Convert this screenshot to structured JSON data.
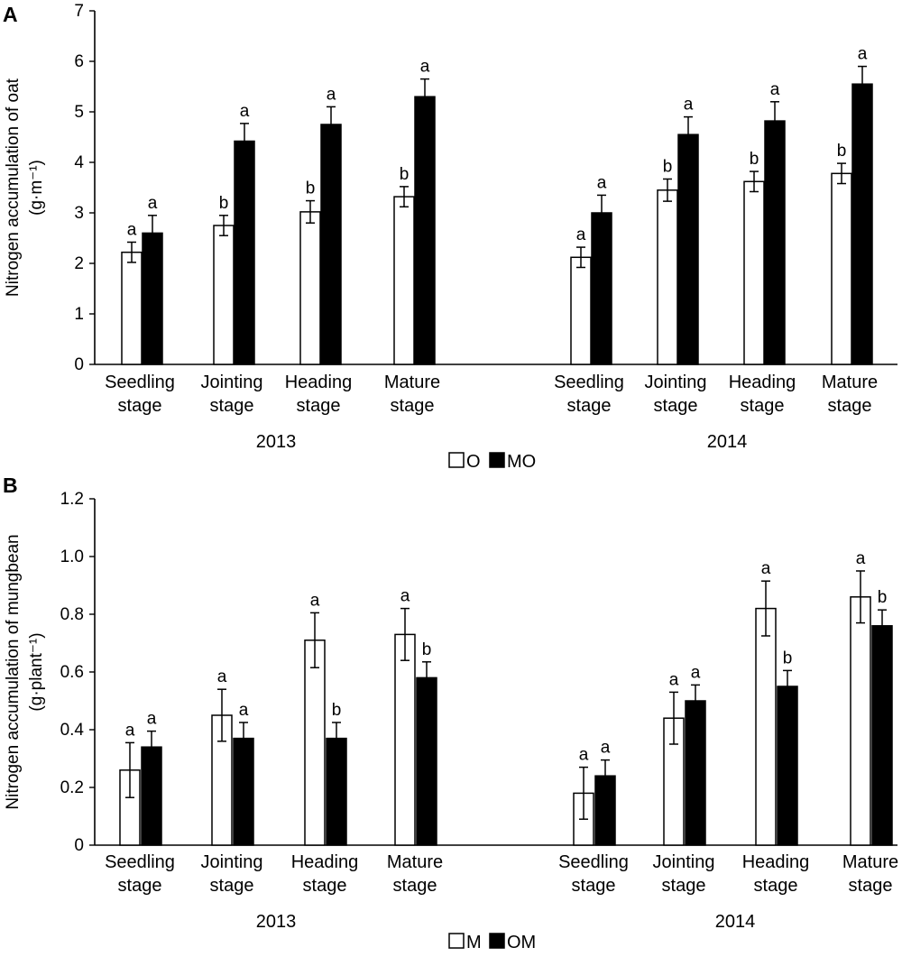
{
  "chart_data": [
    {
      "type": "bar",
      "panel_letter": "A",
      "ylabel_line1": "Nitrogen accumulation of oat",
      "ylabel_line2": "(g·m⁻¹)",
      "ylim": [
        0,
        7
      ],
      "yticks": [
        "0",
        "1",
        "2",
        "3",
        "4",
        "5",
        "6",
        "7"
      ],
      "groups": [
        {
          "year": "2013",
          "categories": [
            [
              "Seedling",
              "stage"
            ],
            [
              "Jointing",
              "stage"
            ],
            [
              "Heading",
              "stage"
            ],
            [
              "Mature",
              "stage"
            ]
          ]
        },
        {
          "year": "2014",
          "categories": [
            [
              "Seedling",
              "stage"
            ],
            [
              "Jointing",
              "stage"
            ],
            [
              "Heading",
              "stage"
            ],
            [
              "Mature",
              "stage"
            ]
          ]
        }
      ],
      "series": [
        {
          "name": "O",
          "color": "#ffffff",
          "values": [
            2.22,
            2.75,
            3.02,
            3.32,
            2.12,
            3.45,
            3.62,
            3.78
          ],
          "errors": [
            0.2,
            0.2,
            0.22,
            0.2,
            0.2,
            0.22,
            0.2,
            0.2
          ],
          "sig": [
            "a",
            "b",
            "b",
            "b",
            "a",
            "b",
            "b",
            "b"
          ]
        },
        {
          "name": "MO",
          "color": "#000000",
          "values": [
            2.6,
            4.42,
            4.75,
            5.3,
            3.0,
            4.55,
            4.82,
            5.55
          ],
          "errors": [
            0.35,
            0.35,
            0.35,
            0.35,
            0.35,
            0.35,
            0.38,
            0.35
          ],
          "sig": [
            "a",
            "a",
            "a",
            "a",
            "a",
            "a",
            "a",
            "a"
          ]
        }
      ],
      "legend": [
        {
          "label": "O",
          "color": "#ffffff"
        },
        {
          "label": "MO",
          "color": "#000000"
        }
      ],
      "legend_position": "bottom-center",
      "grid": false
    },
    {
      "type": "bar",
      "panel_letter": "B",
      "ylabel_line1": "Nitrogen accumulation of mungbean",
      "ylabel_line2": "(g·plant⁻¹)",
      "ylim": [
        0,
        1.2
      ],
      "yticks": [
        "0",
        "0.2",
        "0.4",
        "0.6",
        "0.8",
        "1.0",
        "1.2"
      ],
      "groups": [
        {
          "year": "2013",
          "categories": [
            [
              "Seedling",
              "stage"
            ],
            [
              "Jointing",
              "stage"
            ],
            [
              "Heading",
              "stage"
            ],
            [
              "Mature",
              "stage"
            ]
          ]
        },
        {
          "year": "2014",
          "categories": [
            [
              "Seedling",
              "stage"
            ],
            [
              "Jointing",
              "stage"
            ],
            [
              "Heading",
              "stage"
            ],
            [
              "Mature",
              "stage"
            ]
          ]
        }
      ],
      "series": [
        {
          "name": "M",
          "color": "#ffffff",
          "values": [
            0.26,
            0.45,
            0.71,
            0.73,
            0.18,
            0.44,
            0.82,
            0.86
          ],
          "errors": [
            0.095,
            0.09,
            0.095,
            0.09,
            0.09,
            0.09,
            0.095,
            0.09
          ],
          "sig": [
            "a",
            "a",
            "a",
            "a",
            "a",
            "a",
            "a",
            "a"
          ]
        },
        {
          "name": "OM",
          "color": "#000000",
          "values": [
            0.34,
            0.37,
            0.37,
            0.58,
            0.24,
            0.5,
            0.55,
            0.76
          ],
          "errors": [
            0.055,
            0.055,
            0.055,
            0.055,
            0.055,
            0.055,
            0.055,
            0.055
          ],
          "sig": [
            "a",
            "a",
            "b",
            "b",
            "a",
            "a",
            "b",
            "b"
          ]
        }
      ],
      "legend": [
        {
          "label": "M",
          "color": "#ffffff"
        },
        {
          "label": "OM",
          "color": "#000000"
        }
      ],
      "legend_position": "bottom-center",
      "grid": false
    }
  ]
}
